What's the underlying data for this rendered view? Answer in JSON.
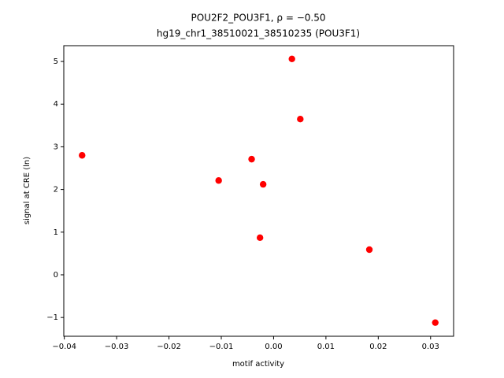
{
  "chart_data": {
    "type": "scatter",
    "title": "POU2F2_POU3F1, ρ = −0.50",
    "subtitle": "hg19_chr1_38510021_38510235 (POU3F1)",
    "x_label": "motif activity",
    "y_label": "signal at CRE (ln)",
    "color": "#ff0000",
    "x": [
      -0.0366,
      -0.0105,
      -0.0042,
      -0.002,
      -0.0026,
      0.0035,
      0.0051,
      0.0183,
      0.0309
    ],
    "values": [
      2.8,
      2.21,
      2.71,
      2.12,
      0.87,
      5.06,
      3.65,
      0.59,
      -1.12
    ],
    "xlim": [
      -0.0401,
      0.0344
    ],
    "ylim": [
      -1.44,
      5.37
    ],
    "xticks": [
      {
        "value": -0.04,
        "label": "−0.04"
      },
      {
        "value": -0.03,
        "label": "−0.03"
      },
      {
        "value": -0.02,
        "label": "−0.02"
      },
      {
        "value": -0.01,
        "label": "−0.01"
      },
      {
        "value": 0,
        "label": "0.00"
      },
      0.01,
      0.02,
      0.03
    ],
    "yticks": [
      {
        "value": -1,
        "label": "−1"
      },
      0,
      1,
      2,
      3,
      4,
      5
    ],
    "grid": false
  }
}
